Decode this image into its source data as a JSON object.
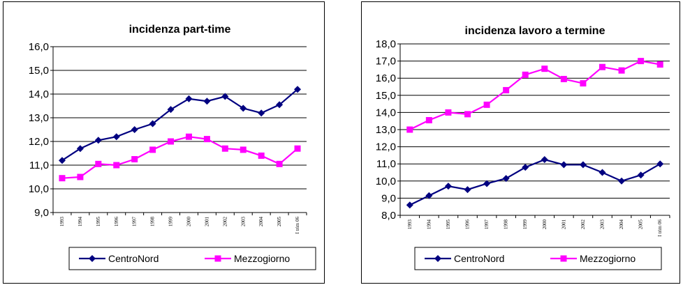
{
  "colors": {
    "centronord": "#000080",
    "mezzogiorno": "#ff00ff"
  },
  "chart_data": [
    {
      "type": "line",
      "title": "incidenza part-time",
      "categories": [
        "1993",
        "1994",
        "1995",
        "1996",
        "1997",
        "1998",
        "1999",
        "2000",
        "2001",
        "2002",
        "2003",
        "2004",
        "2005",
        "I trim 06"
      ],
      "ylim": [
        9,
        16
      ],
      "yticks": [
        "9,0",
        "10,0",
        "11,0",
        "12,0",
        "13,0",
        "14,0",
        "15,0",
        "16,0"
      ],
      "grid": true,
      "legend": "bottom",
      "series": [
        {
          "name": "CentroNord",
          "marker": "diamond",
          "values": [
            11.2,
            11.7,
            12.05,
            12.2,
            12.5,
            12.75,
            13.35,
            13.8,
            13.7,
            13.9,
            13.4,
            13.2,
            13.55,
            14.2
          ]
        },
        {
          "name": "Mezzogiorno",
          "marker": "square",
          "values": [
            10.45,
            10.5,
            11.05,
            11.0,
            11.25,
            11.65,
            12.0,
            12.2,
            12.1,
            11.7,
            11.65,
            11.4,
            11.05,
            11.7
          ]
        }
      ]
    },
    {
      "type": "line",
      "title": "incidenza lavoro a termine",
      "categories": [
        "1993",
        "1994",
        "1995",
        "1996",
        "1997",
        "1998",
        "1999",
        "2000",
        "2001",
        "2002",
        "2003",
        "2004",
        "2005",
        "I trim 06"
      ],
      "ylim": [
        8,
        18
      ],
      "yticks": [
        "8,0",
        "9,0",
        "10,0",
        "11,0",
        "12,0",
        "13,0",
        "14,0",
        "15,0",
        "16,0",
        "17,0",
        "18,0"
      ],
      "grid": true,
      "legend": "bottom",
      "series": [
        {
          "name": "CentroNord",
          "marker": "diamond",
          "values": [
            8.6,
            9.15,
            9.7,
            9.5,
            9.85,
            10.15,
            10.8,
            11.25,
            10.95,
            10.95,
            10.5,
            10.0,
            10.35,
            11.0
          ]
        },
        {
          "name": "Mezzogiorno",
          "marker": "square",
          "values": [
            13.0,
            13.55,
            14.0,
            13.9,
            14.45,
            15.3,
            16.2,
            16.55,
            15.95,
            15.7,
            16.65,
            16.45,
            17.0,
            16.8
          ]
        }
      ]
    }
  ]
}
